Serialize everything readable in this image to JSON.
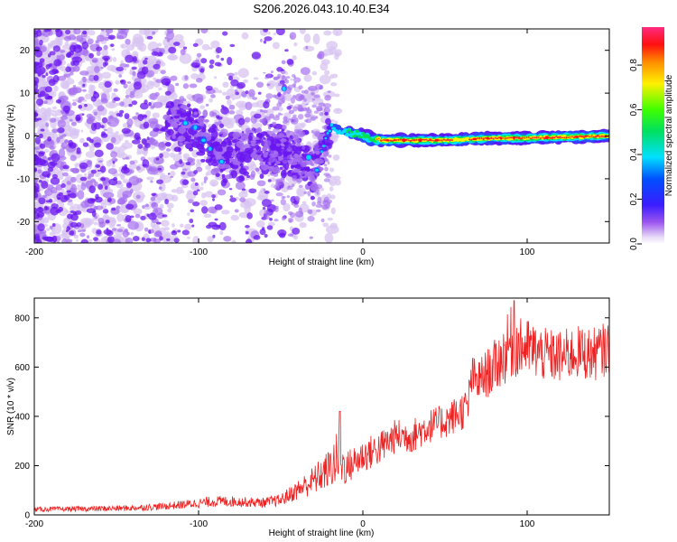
{
  "title": "S206.2026.043.10.40.E34",
  "colors": {
    "line": "#ee2222",
    "blob_faint": "#d8c4f2",
    "blob_mid": "#a56ff0",
    "blob_dark": "#6a16f0",
    "frame": "#000000"
  },
  "chart_data": [
    {
      "type": "heatmap",
      "title": "S206.2026.043.10.40.E34",
      "xlabel": "Height of straight line (km)",
      "ylabel": "Frequency (Hz)",
      "xlim": [
        -200,
        150
      ],
      "ylim": [
        -25,
        25
      ],
      "xticks": [
        -200,
        -100,
        0,
        100
      ],
      "xtick_labels": [
        "-200",
        "-100",
        "0",
        "100"
      ],
      "yticks": [
        20,
        10,
        0,
        -10,
        -20
      ],
      "ytick_labels": [
        "20",
        "10",
        "0",
        "-10",
        "-20"
      ],
      "colorbar": {
        "label": "Normalized spectral amplitude",
        "range": [
          0,
          0.97
        ],
        "ticks": [
          0.0,
          0.2,
          0.4,
          0.6,
          0.8
        ],
        "tick_labels": [
          "0.0",
          "0.2",
          "0.4",
          "0.6",
          "0.8"
        ],
        "colormap": "hsv"
      },
      "ridge": {
        "x": [
          -110,
          -100,
          -90,
          -80,
          -70,
          -60,
          -50,
          -40,
          -30,
          -20,
          -10,
          0,
          10,
          20,
          50,
          80,
          100,
          150
        ],
        "frequency": [
          3,
          1,
          -3,
          -5,
          -2,
          -3,
          -4,
          -5,
          -8,
          2,
          1,
          0,
          -1,
          -1,
          -1,
          -0.5,
          -0.5,
          0
        ],
        "description_amplitude": [
          0.2,
          0.15,
          0.15,
          0.15,
          0.1,
          0.1,
          0.1,
          0.1,
          0.15,
          0.3,
          0.45,
          0.6,
          0.9,
          0.9,
          0.9,
          0.9,
          0.9,
          0.95
        ]
      }
    },
    {
      "type": "line",
      "xlabel": "Height of straight line (km)",
      "ylabel": "SNR (10 * v/v)",
      "xlim": [
        -200,
        150
      ],
      "ylim": [
        0,
        880
      ],
      "xticks": [
        -200,
        -100,
        0,
        100
      ],
      "xtick_labels": [
        "-200",
        "-100",
        "0",
        "100"
      ],
      "yticks": [
        0,
        200,
        400,
        600,
        800
      ],
      "ytick_labels": [
        "0",
        "200",
        "400",
        "600",
        "800"
      ],
      "series": [
        {
          "name": "SNR",
          "x": [
            -200,
            -180,
            -160,
            -140,
            -120,
            -100,
            -90,
            -80,
            -70,
            -60,
            -50,
            -40,
            -30,
            -20,
            -15,
            -10,
            -5,
            0,
            10,
            20,
            30,
            40,
            50,
            60,
            64,
            66,
            70,
            80,
            85,
            90,
            95,
            100,
            110,
            120,
            130,
            140,
            150
          ],
          "values": [
            22,
            24,
            25,
            28,
            35,
            48,
            55,
            55,
            52,
            50,
            60,
            100,
            140,
            190,
            230,
            190,
            215,
            240,
            270,
            320,
            320,
            360,
            380,
            420,
            440,
            560,
            540,
            600,
            640,
            700,
            680,
            680,
            650,
            640,
            660,
            650,
            680
          ],
          "noise": [
            10,
            10,
            12,
            12,
            15,
            20,
            22,
            22,
            20,
            20,
            25,
            40,
            60,
            80,
            120,
            70,
            70,
            70,
            70,
            70,
            70,
            70,
            70,
            80,
            80,
            90,
            90,
            110,
            120,
            150,
            120,
            120,
            110,
            110,
            110,
            110,
            110
          ],
          "peaks": [
            {
              "x": -14,
              "y": 420
            },
            {
              "x": 92,
              "y": 870
            }
          ]
        }
      ]
    }
  ]
}
